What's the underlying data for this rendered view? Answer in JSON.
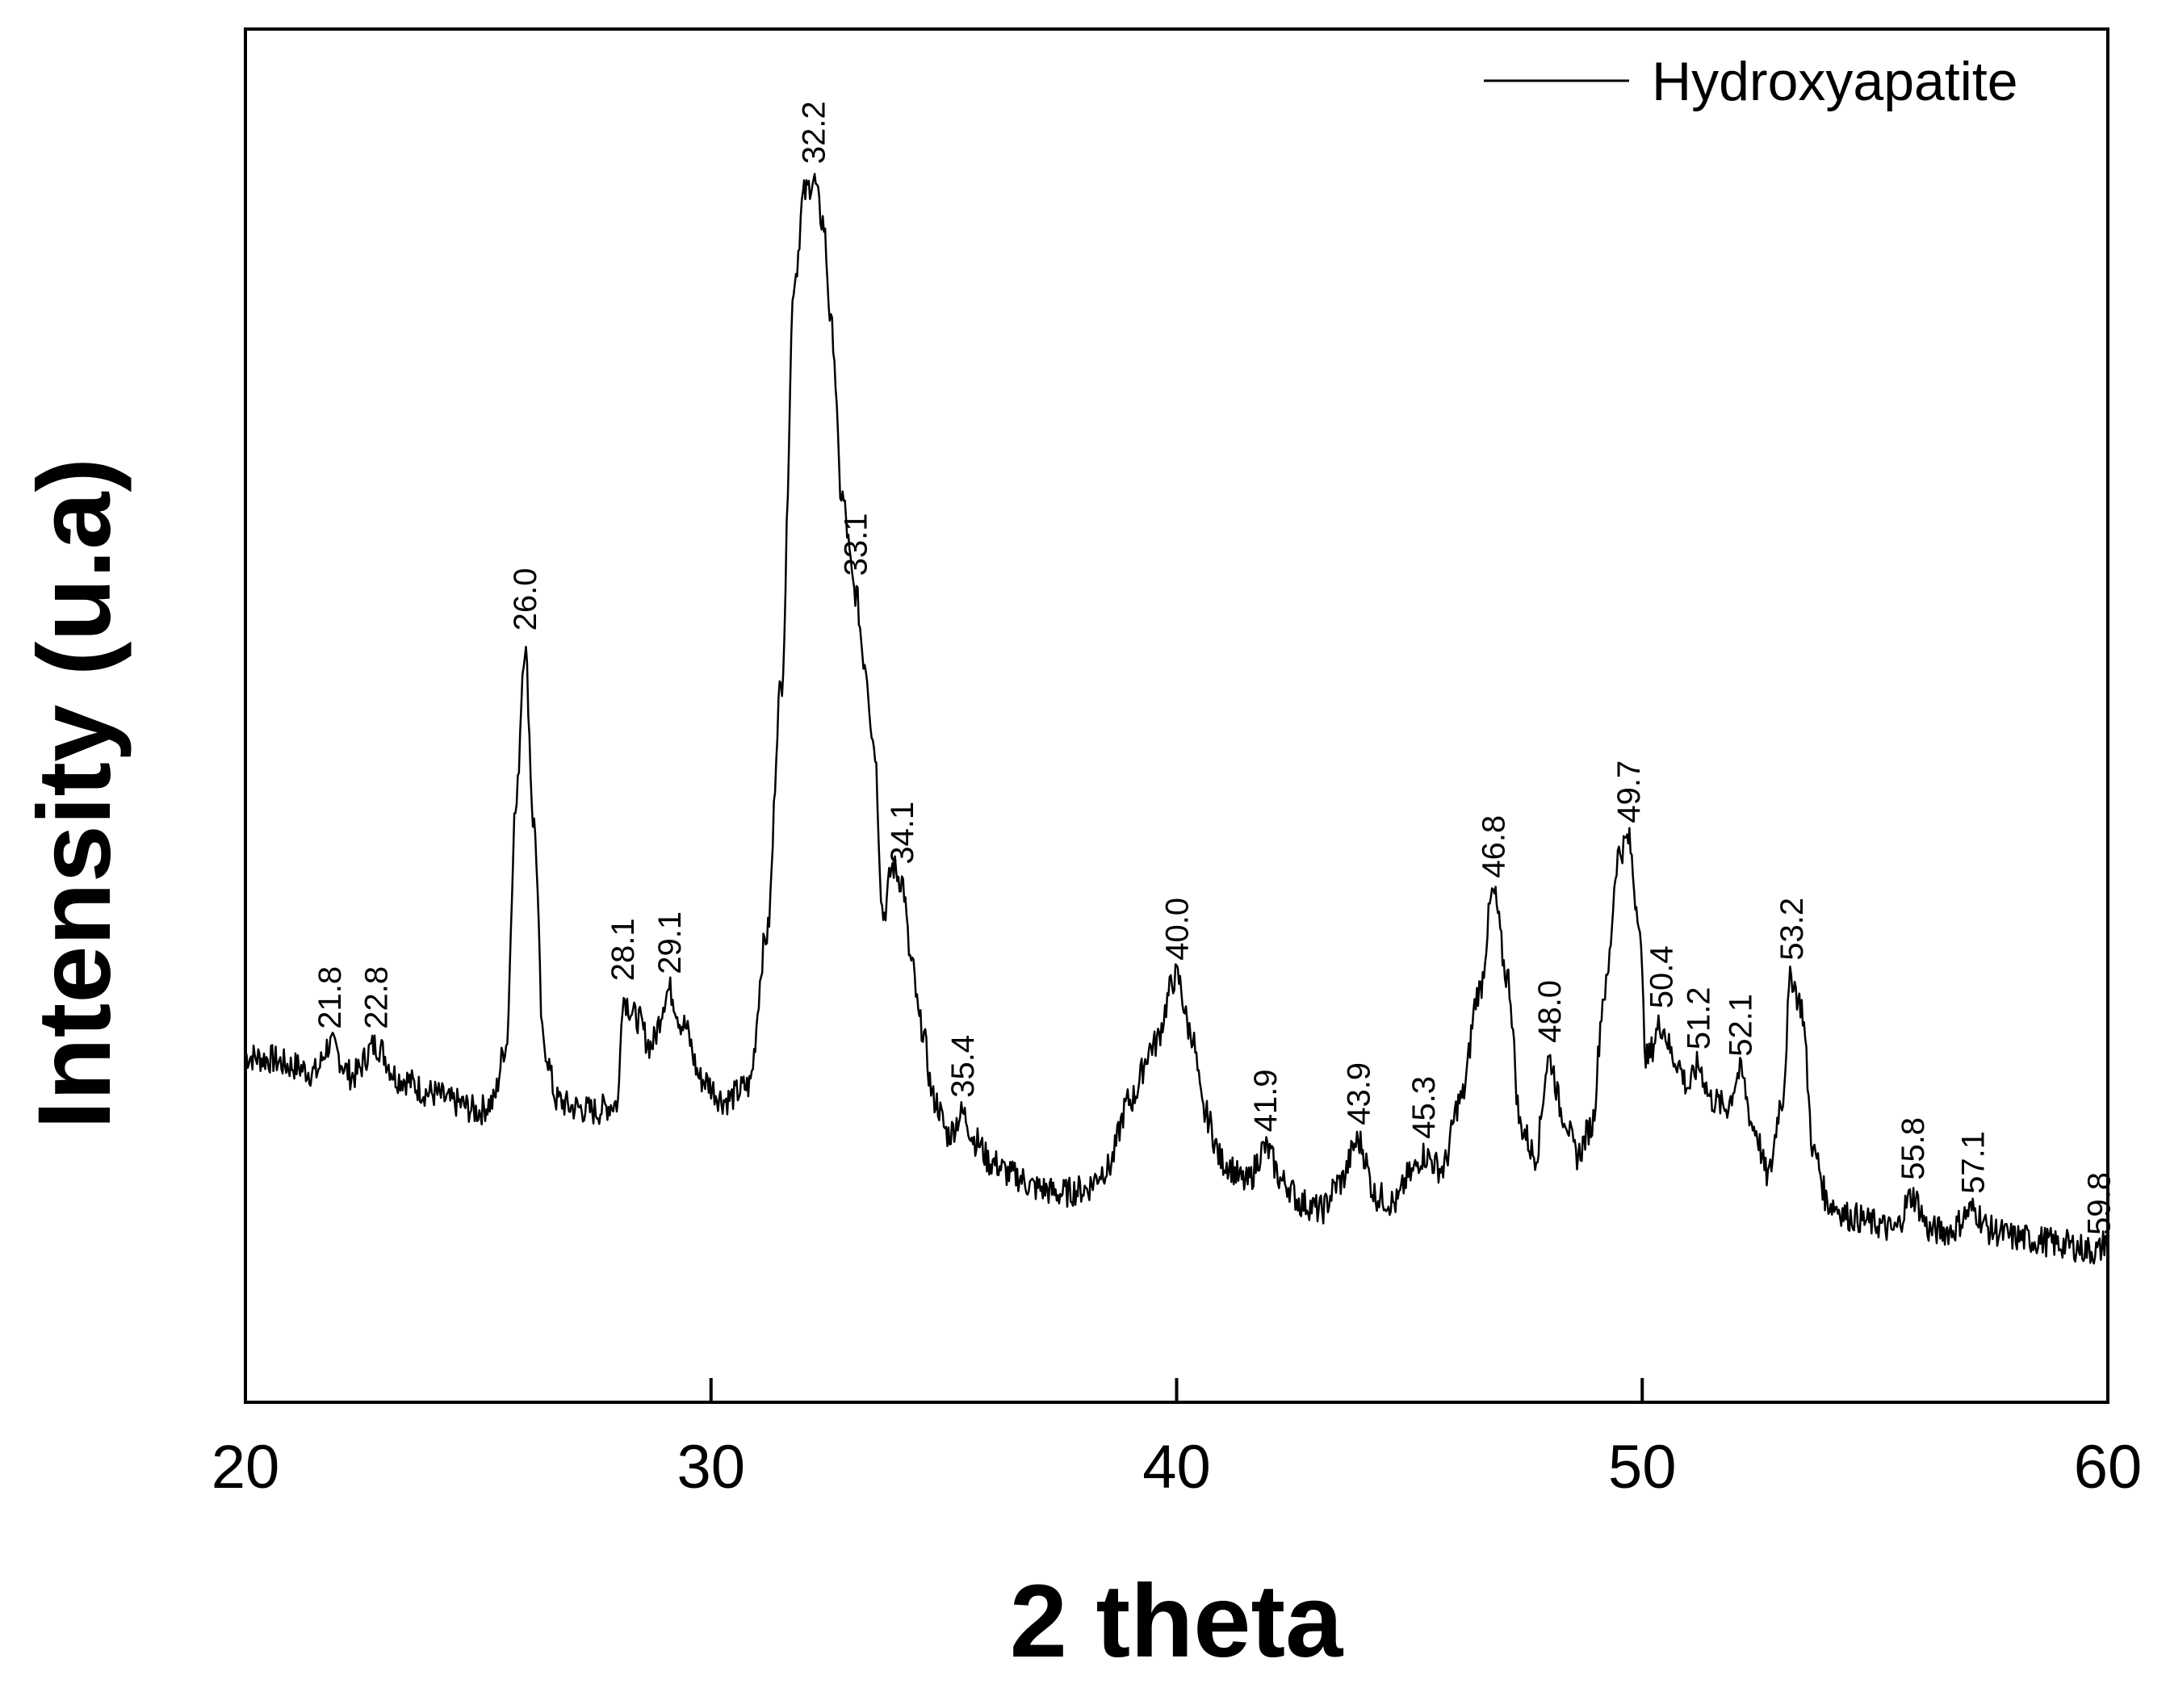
{
  "chart_data": {
    "type": "line",
    "title": "",
    "xlabel": "2 theta",
    "ylabel": "Intensity (u.a)",
    "xlim": [
      20,
      60
    ],
    "ylim": [
      0,
      100
    ],
    "x_ticks": [
      "20",
      "30",
      "40",
      "50",
      "60"
    ],
    "y_ticks_shown": false,
    "grid": false,
    "legend_position": "top-right",
    "series": [
      {
        "name": "Hydroxyapatite",
        "color": "#000000",
        "x": [
          20.0,
          20.5,
          21.0,
          21.5,
          21.8,
          22.3,
          22.8,
          23.3,
          24.0,
          24.5,
          25.0,
          25.3,
          25.6,
          25.8,
          26.0,
          26.2,
          26.4,
          26.7,
          27.0,
          27.5,
          28.0,
          28.1,
          28.4,
          28.7,
          29.1,
          29.4,
          29.8,
          30.3,
          30.8,
          31.2,
          31.5,
          31.8,
          32.0,
          32.2,
          32.4,
          32.6,
          32.8,
          33.1,
          33.3,
          33.5,
          33.7,
          33.9,
          34.1,
          34.3,
          34.5,
          34.8,
          35.1,
          35.4,
          35.7,
          36.0,
          36.5,
          37.0,
          37.5,
          38.0,
          38.5,
          39.0,
          39.5,
          40.0,
          40.3,
          40.6,
          41.0,
          41.5,
          41.9,
          42.3,
          42.7,
          43.1,
          43.5,
          43.9,
          44.3,
          44.7,
          45.0,
          45.3,
          45.7,
          46.1,
          46.5,
          46.8,
          47.1,
          47.4,
          47.7,
          48.0,
          48.3,
          48.6,
          48.9,
          49.2,
          49.5,
          49.7,
          49.9,
          50.1,
          50.4,
          50.7,
          51.0,
          51.2,
          51.5,
          51.8,
          52.1,
          52.4,
          52.7,
          53.0,
          53.2,
          53.4,
          53.7,
          54.0,
          54.5,
          55.0,
          55.4,
          55.8,
          56.2,
          56.6,
          57.1,
          57.5,
          58.0,
          58.5,
          59.0,
          59.8,
          60.0
        ],
        "y": [
          25.2,
          25.0,
          24.5,
          24.0,
          26.0,
          23.8,
          26.0,
          23.6,
          22.5,
          21.8,
          21.2,
          21.8,
          26.0,
          43.0,
          55.0,
          42.0,
          26.0,
          22.0,
          21.5,
          21.2,
          21.8,
          29.5,
          28.0,
          26.0,
          30.0,
          27.5,
          23.5,
          22.0,
          23.0,
          34.0,
          52.0,
          82.0,
          88.0,
          89.0,
          86.0,
          78.0,
          66.0,
          59.0,
          54.0,
          48.0,
          35.5,
          39.0,
          38.0,
          32.0,
          27.5,
          22.0,
          19.5,
          21.0,
          19.0,
          17.5,
          16.5,
          15.6,
          15.2,
          15.5,
          17.0,
          22.0,
          26.0,
          31.0,
          27.0,
          21.0,
          17.5,
          16.0,
          18.5,
          16.0,
          14.5,
          14.0,
          16.0,
          19.0,
          15.0,
          14.5,
          16.5,
          18.0,
          17.0,
          22.0,
          30.0,
          37.0,
          31.0,
          20.0,
          18.0,
          25.0,
          21.0,
          18.0,
          20.0,
          30.0,
          40.0,
          41.0,
          36.0,
          25.0,
          27.5,
          25.0,
          23.0,
          24.5,
          22.0,
          21.5,
          24.0,
          20.0,
          16.5,
          22.0,
          31.0,
          29.0,
          18.0,
          14.5,
          13.5,
          13.0,
          12.5,
          15.0,
          12.5,
          12.5,
          14.0,
          12.5,
          12.0,
          11.8,
          11.5,
          11.0,
          12.0
        ]
      }
    ],
    "annotations": [
      {
        "label": "21.8",
        "x": 21.8,
        "y": 26.0
      },
      {
        "label": "22.8",
        "x": 22.8,
        "y": 26.0
      },
      {
        "label": "26.0",
        "x": 26.0,
        "y": 55.0
      },
      {
        "label": "28.1",
        "x": 28.1,
        "y": 29.5
      },
      {
        "label": "29.1",
        "x": 29.1,
        "y": 30.0
      },
      {
        "label": "32.2",
        "x": 32.2,
        "y": 89.0
      },
      {
        "label": "33.1",
        "x": 33.1,
        "y": 59.0
      },
      {
        "label": "34.1",
        "x": 34.1,
        "y": 38.0
      },
      {
        "label": "35.4",
        "x": 35.4,
        "y": 21.0
      },
      {
        "label": "40.0",
        "x": 40.0,
        "y": 31.0
      },
      {
        "label": "41.9",
        "x": 41.9,
        "y": 18.5
      },
      {
        "label": "43.9",
        "x": 43.9,
        "y": 19.0
      },
      {
        "label": "45.3",
        "x": 45.3,
        "y": 18.0
      },
      {
        "label": "46.8",
        "x": 46.8,
        "y": 37.0
      },
      {
        "label": "48.0",
        "x": 48.0,
        "y": 25.0
      },
      {
        "label": "49.7",
        "x": 49.7,
        "y": 41.0
      },
      {
        "label": "50.4",
        "x": 50.4,
        "y": 27.5
      },
      {
        "label": "51.2",
        "x": 51.2,
        "y": 24.5
      },
      {
        "label": "52.1",
        "x": 52.1,
        "y": 24.0
      },
      {
        "label": "53.2",
        "x": 53.2,
        "y": 31.0
      },
      {
        "label": "55.8",
        "x": 55.8,
        "y": 15.0
      },
      {
        "label": "57.1",
        "x": 57.1,
        "y": 14.0
      },
      {
        "label": "59.8",
        "x": 59.8,
        "y": 11.0
      }
    ]
  }
}
